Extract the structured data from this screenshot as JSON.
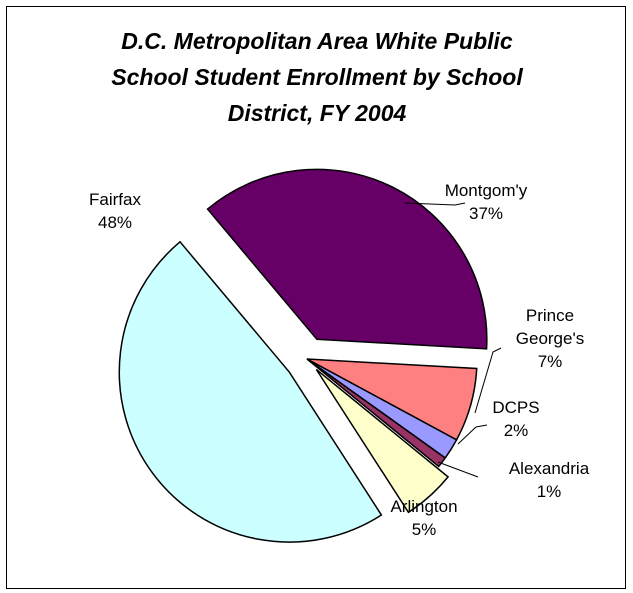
{
  "chart_data": {
    "type": "pie",
    "title_lines": [
      "D.C. Metropolitan Area White Public",
      "School Student Enrollment by School",
      "District, FY 2004"
    ],
    "slices": [
      {
        "name": "Montgom'y",
        "name_lines": [
          "Montgom'y"
        ],
        "value": 37,
        "pct_label": "37%",
        "color": "#660066"
      },
      {
        "name": "Prince George's",
        "name_lines": [
          "Prince",
          "George's"
        ],
        "value": 7,
        "pct_label": "7%",
        "color": "#FF8080"
      },
      {
        "name": "DCPS",
        "name_lines": [
          "DCPS"
        ],
        "value": 2,
        "pct_label": "2%",
        "color": "#9999FF"
      },
      {
        "name": "Alexandria",
        "name_lines": [
          "Alexandria"
        ],
        "value": 1,
        "pct_label": "1%",
        "color": "#993366"
      },
      {
        "name": "Arlington",
        "name_lines": [
          "Arlington"
        ],
        "value": 5,
        "pct_label": "5%",
        "color": "#FFFFCC"
      },
      {
        "name": "Fairfax",
        "name_lines": [
          "Fairfax"
        ],
        "value": 48,
        "pct_label": "48%",
        "color": "#CCFFFF"
      }
    ],
    "exploded": [
      "Montgom'y",
      "Fairfax",
      "Arlington"
    ],
    "legend": "none"
  }
}
